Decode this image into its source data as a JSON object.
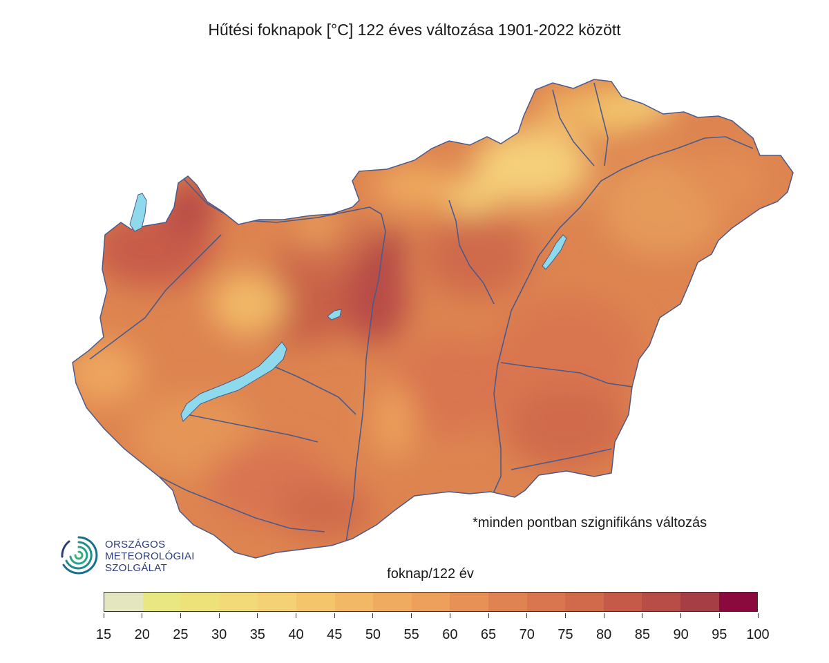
{
  "title": "Hűtési foknapok [°C] 122 éves változása 1901-2022 között",
  "note": "*minden pontban szignifikáns változás",
  "logo": {
    "line1": "ORSZÁGOS",
    "line2": "METEOROLÓGIAI",
    "line3": "SZOLGÁLAT"
  },
  "legend": {
    "unit_label": "foknap/122 év",
    "ticks": [
      "15",
      "20",
      "25",
      "30",
      "35",
      "40",
      "45",
      "50",
      "55",
      "60",
      "65",
      "70",
      "75",
      "80",
      "85",
      "90",
      "95",
      "100"
    ],
    "colors": [
      "#e3e6bf",
      "#e9e781",
      "#ede27a",
      "#f2da78",
      "#f5d176",
      "#f5c56c",
      "#f3b865",
      "#efab5f",
      "#eca05b",
      "#e79157",
      "#e08353",
      "#d9754f",
      "#d1694b",
      "#c65a48",
      "#b84c46",
      "#a63e45",
      "#8b0a3d"
    ]
  },
  "colors": {
    "water": "#8fd9ec",
    "river": "#4a5a8a",
    "map_base": "#dc8150"
  }
}
